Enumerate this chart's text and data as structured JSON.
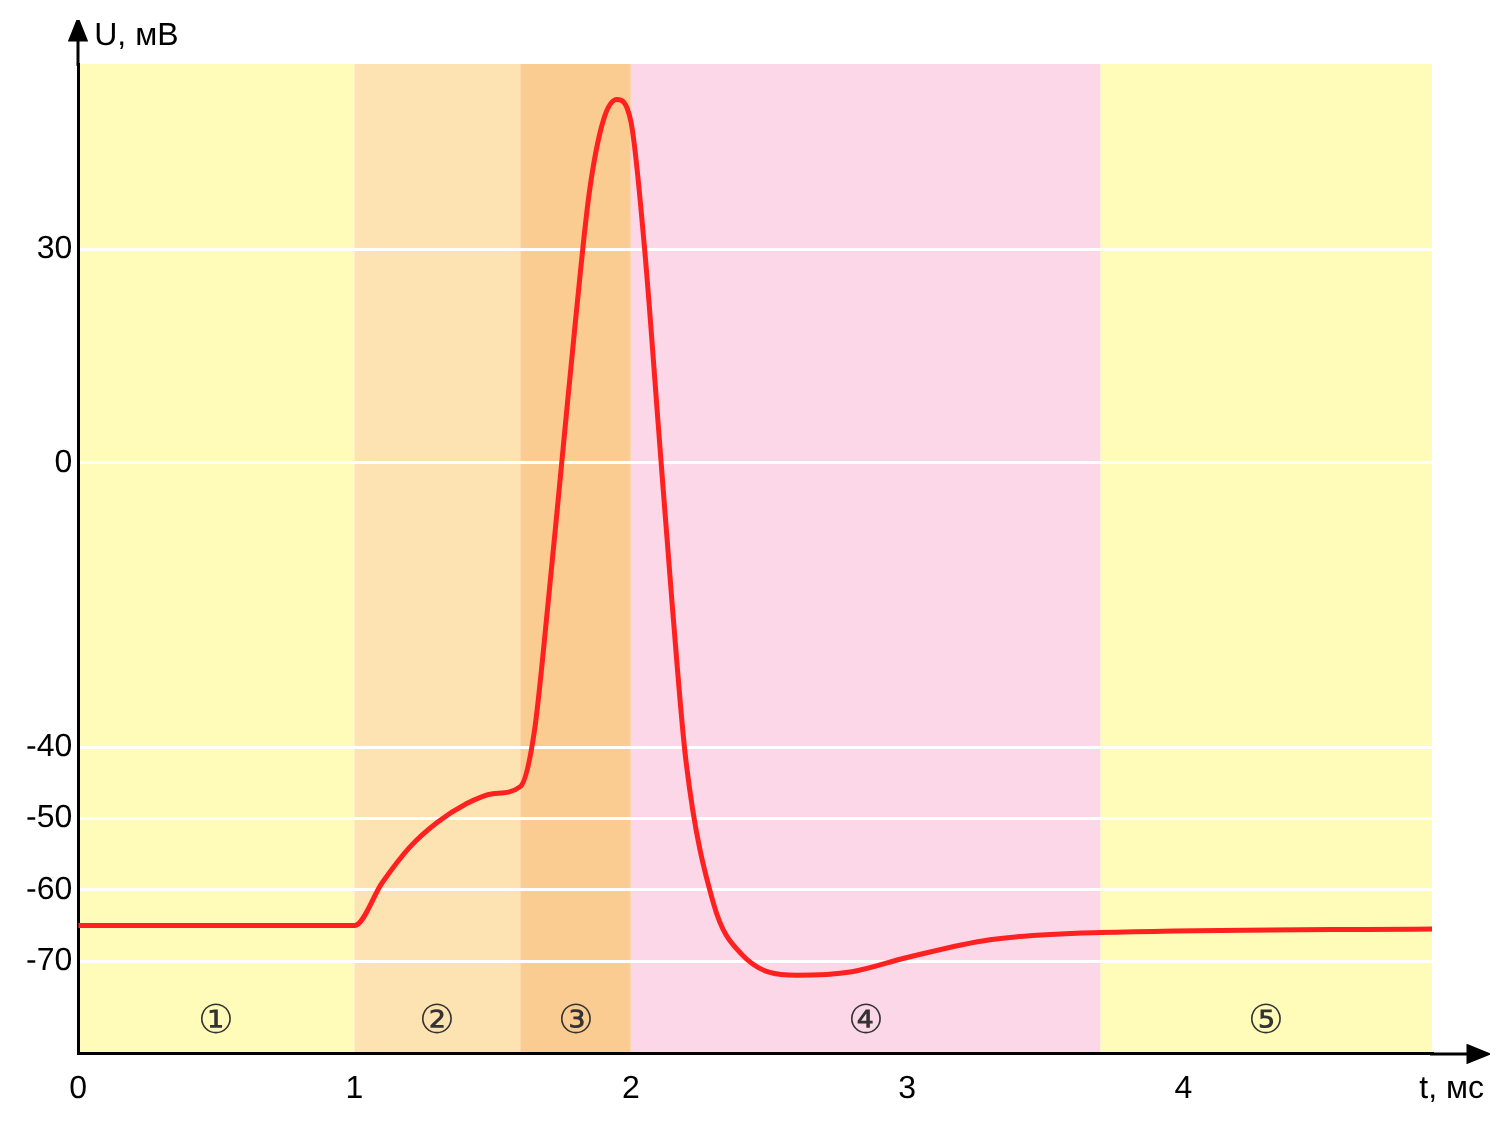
{
  "chart_data": {
    "type": "line",
    "xlabel": "t, мс",
    "ylabel": "U, мВ",
    "xlim": [
      0,
      4.9
    ],
    "ylim": [
      -83,
      56
    ],
    "xticks": [
      0,
      1,
      2,
      3,
      4
    ],
    "yticks": [
      -70,
      -60,
      -50,
      -40,
      0,
      30
    ],
    "grid": "y",
    "legend": false,
    "marker": "none",
    "line_style": "solid",
    "series": [
      {
        "color": "#ff2020",
        "x": [
          0,
          1,
          1.1,
          1.2,
          1.3,
          1.4,
          1.5,
          1.6,
          1.65,
          1.7,
          1.75,
          1.8,
          1.85,
          1.9,
          1.95,
          2.0,
          2.05,
          2.1,
          2.15,
          2.2,
          2.3,
          2.4,
          2.6,
          2.8,
          3.0,
          3.3,
          3.7,
          4.9
        ],
        "values": [
          -65,
          -65,
          -59,
          -54,
          -50.5,
          -48,
          -46.5,
          -45.5,
          -38,
          -20,
          0,
          20,
          38,
          48,
          51,
          48,
          30,
          5,
          -20,
          -42,
          -62,
          -69,
          -72,
          -71.5,
          -69.5,
          -67,
          -66,
          -65.5
        ]
      }
    ],
    "bands": [
      {
        "axis": "x",
        "from": 0,
        "to": 1,
        "label": "①",
        "color": "#fefcb8"
      },
      {
        "axis": "x",
        "from": 1,
        "to": 1.6,
        "label": "②",
        "color": "#fde2b2"
      },
      {
        "axis": "x",
        "from": 1.6,
        "to": 2,
        "label": "③",
        "color": "#fbcc92"
      },
      {
        "axis": "x",
        "from": 2,
        "to": 3.7,
        "label": "④",
        "color": "#fbd7e7"
      },
      {
        "axis": "x",
        "from": 3.7,
        "to": 4.9,
        "label": "⑤",
        "color": "#fefcb8"
      }
    ]
  }
}
